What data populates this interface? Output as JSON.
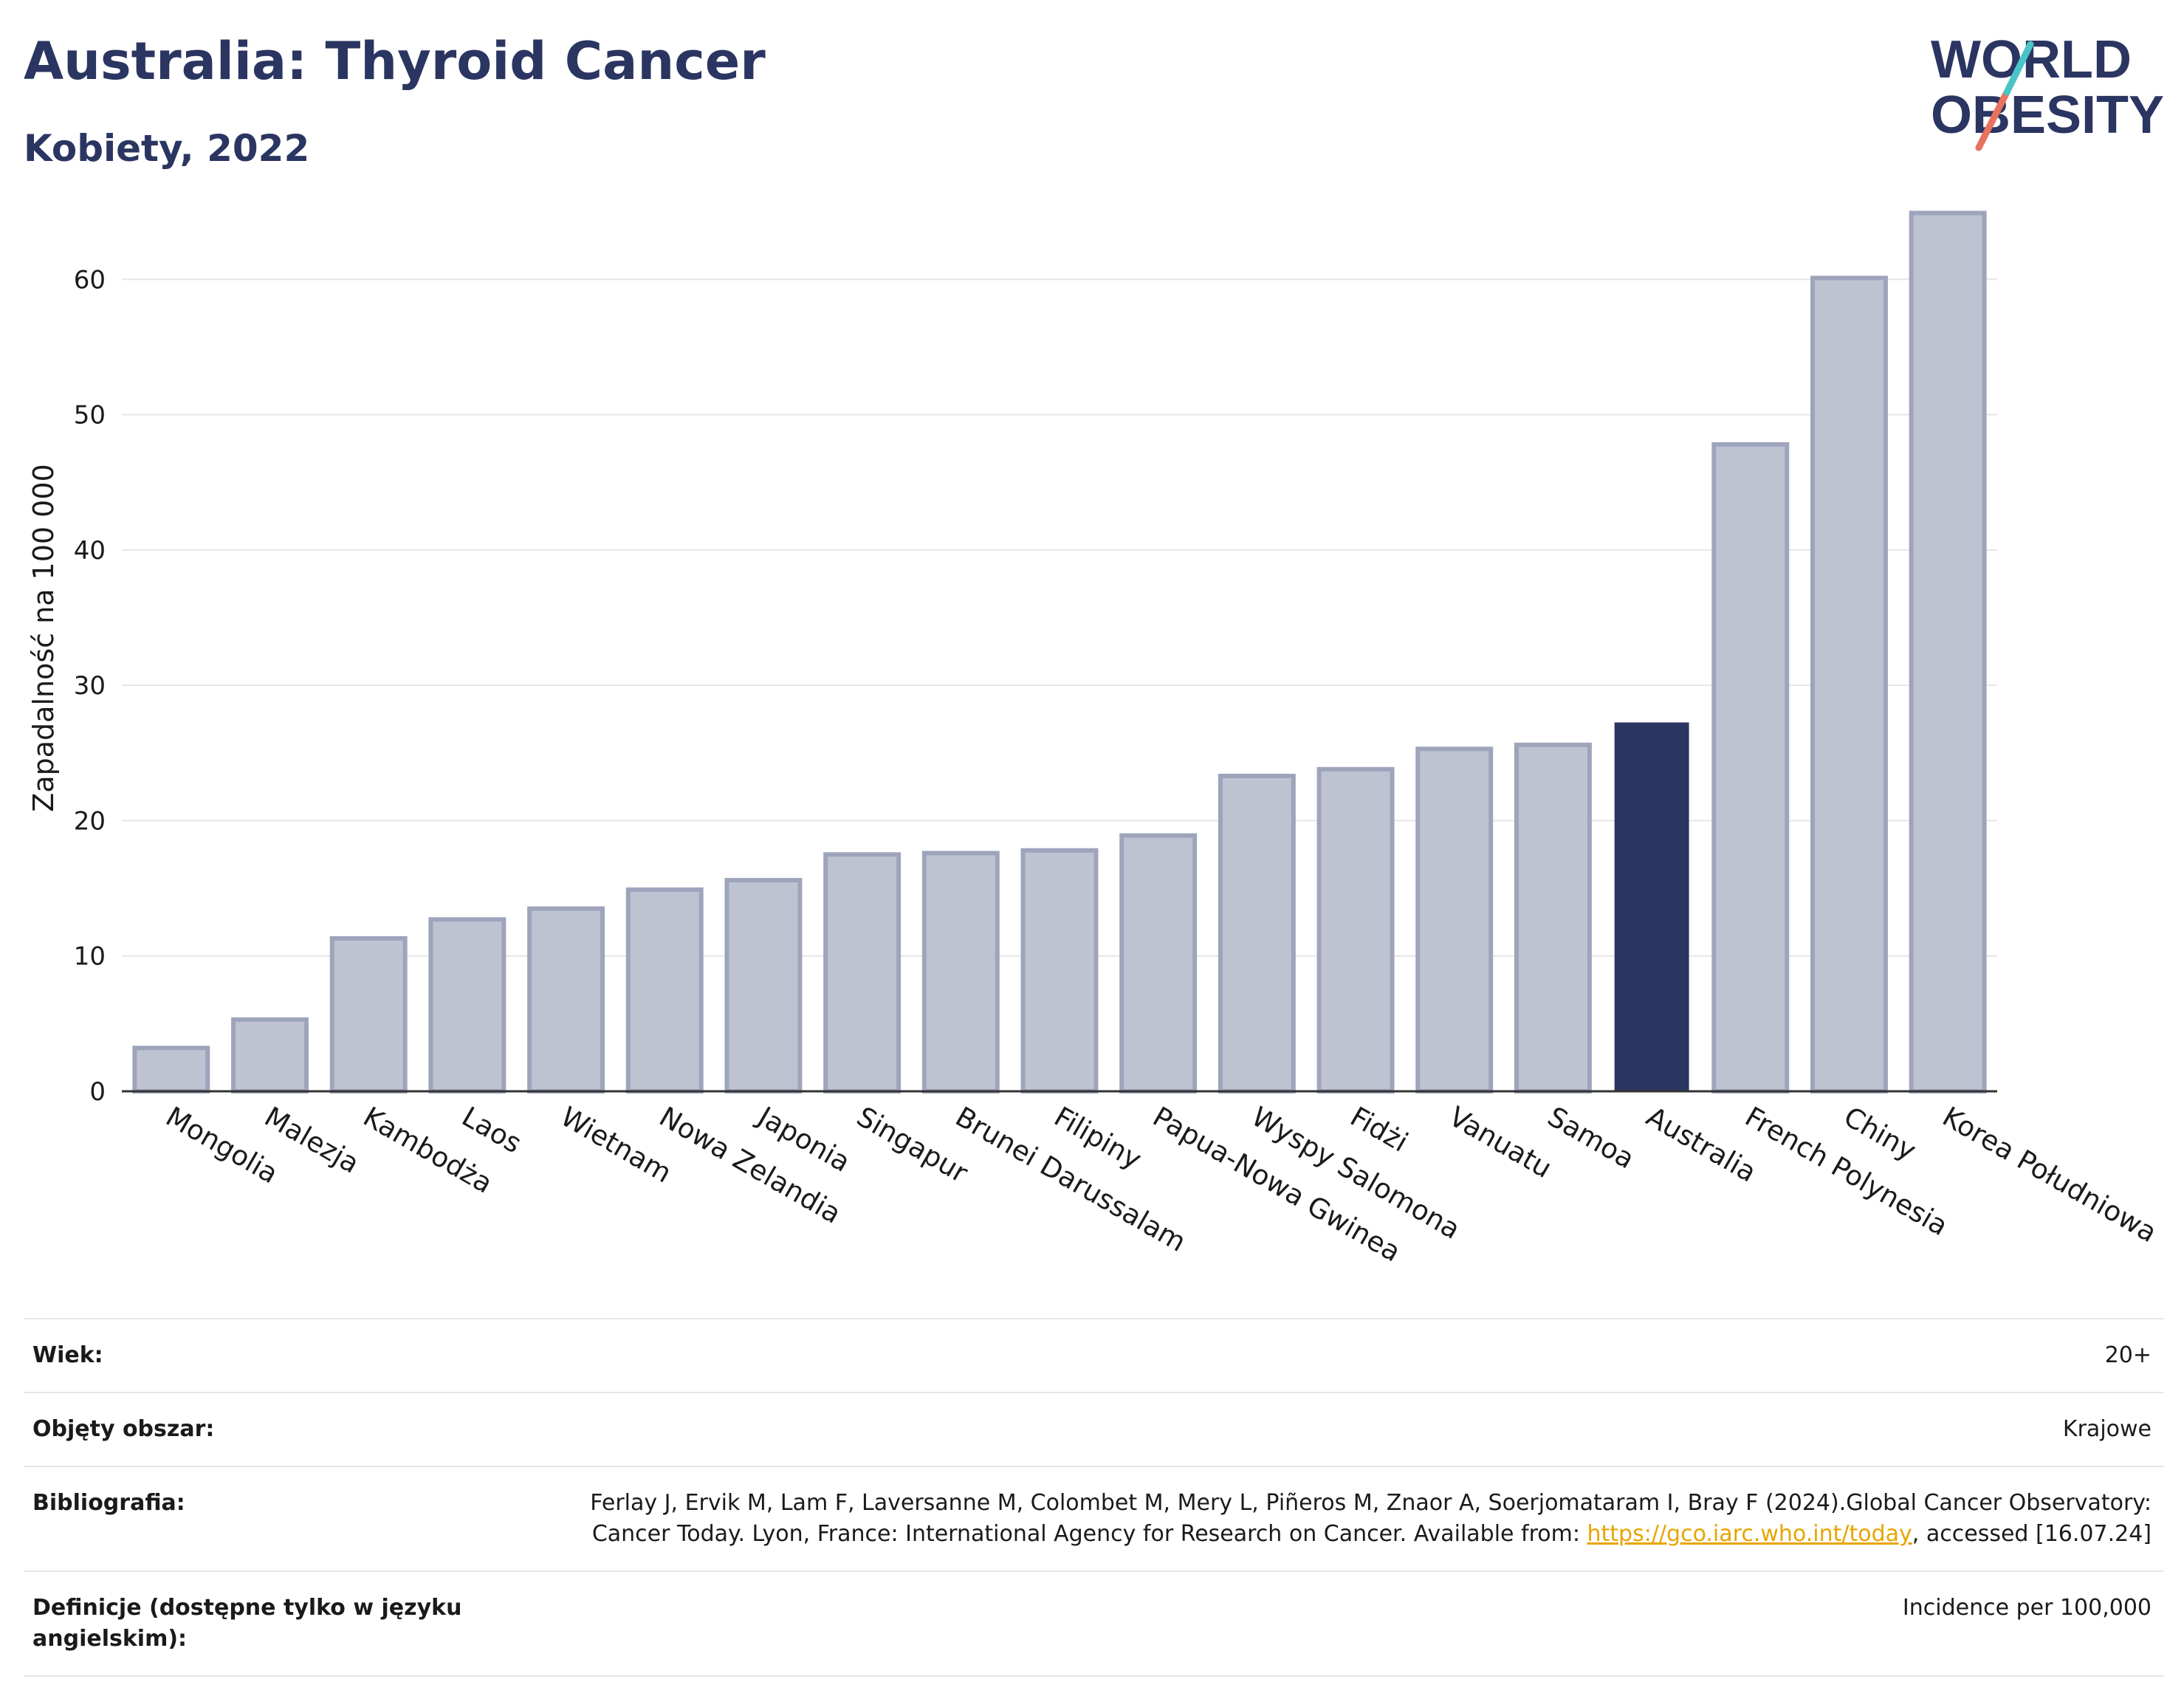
{
  "header": {
    "title": "Australia: Thyroid Cancer",
    "subtitle": "Kobiety, 2022"
  },
  "logo": {
    "line1": "WORLD",
    "line2": "OBESITY",
    "accent_colors": [
      "#4bc4c7",
      "#e8715f"
    ]
  },
  "colors": {
    "bar": "#bfc3d1",
    "bar_edge": "#9ea4bb",
    "highlight": "#2b3561",
    "title": "#2b3561"
  },
  "chart_data": {
    "type": "bar",
    "title": "Australia: Thyroid Cancer",
    "subtitle": "Kobiety, 2022",
    "xlabel": "",
    "ylabel": "Zapadalność na 100 000",
    "ylim": [
      0,
      67
    ],
    "yticks": [
      0,
      10,
      20,
      30,
      40,
      50,
      60
    ],
    "grid": true,
    "highlight": "Australia",
    "categories": [
      "Mongolia",
      "Malezja",
      "Kambodża",
      "Laos",
      "Wietnam",
      "Nowa Zelandia",
      "Japonia",
      "Singapur",
      "Brunei Darussalam",
      "Filipiny",
      "Papua-Nowa Gwinea",
      "Wyspy Salomona",
      "Fidżi",
      "Vanuatu",
      "Samoa",
      "Australia",
      "French Polynesia",
      "Chiny",
      "Korea Południowa"
    ],
    "values": [
      3.2,
      5.3,
      11.3,
      12.7,
      13.5,
      14.9,
      15.6,
      17.5,
      17.6,
      17.8,
      18.9,
      23.3,
      23.8,
      25.3,
      25.6,
      27.2,
      47.8,
      60.1,
      64.9
    ]
  },
  "info": [
    {
      "label": "Wiek:",
      "value": "20+"
    },
    {
      "label": "Objęty obszar:",
      "value": "Krajowe"
    },
    {
      "label": "Bibliografia:",
      "value": "Ferlay J, Ervik M, Lam F, Laversanne M, Colombet M, Mery L, Piñeros M, Znaor A, Soerjomataram I, Bray F (2024).Global Cancer Observatory: Cancer Today. Lyon, France: International Agency for Research on Cancer. Available from: ",
      "link": "https://gco.iarc.who.int/today",
      "suffix": ", accessed [16.07.24]"
    },
    {
      "label": "Definicje (dostępne tylko w języku angielskim):",
      "value": "Incidence per 100,000"
    }
  ]
}
